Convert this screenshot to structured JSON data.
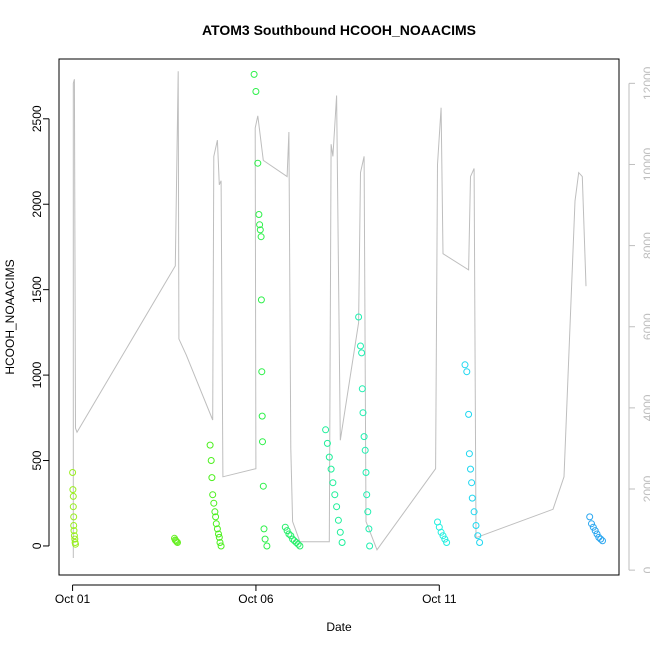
{
  "chart_data": {
    "type": "scatter",
    "title": "ATOM3 Southbound HCOOH_NOAACIMS",
    "xlabel": "Date",
    "ylabel": "HCOOH_NOAACIMS",
    "x_ticks": [
      {
        "day": 1,
        "label": "Oct 01"
      },
      {
        "day": 6,
        "label": "Oct 06"
      },
      {
        "day": 11,
        "label": "Oct 11"
      }
    ],
    "xlim_days": [
      0.63,
      15.9
    ],
    "ylim": [
      -170,
      2850
    ],
    "y_ticks": [
      0,
      500,
      1000,
      1500,
      2000,
      2500
    ],
    "y2lim": [
      -120,
      12600
    ],
    "y2_ticks": [
      0,
      2000,
      4000,
      6000,
      8000,
      10000,
      12000
    ],
    "y2_color": "#bebebe",
    "grid": false,
    "legend": "none",
    "altitude_trace": {
      "color": "#bebebe",
      "description_units": "secondary axis",
      "points": [
        [
          1.02,
          300
        ],
        [
          1.02,
          12000
        ],
        [
          1.05,
          12100
        ],
        [
          1.08,
          3500
        ],
        [
          1.12,
          3400
        ],
        [
          3.8,
          7500
        ],
        [
          3.88,
          12300
        ],
        [
          3.9,
          5700
        ],
        [
          4.1,
          5300
        ],
        [
          4.82,
          3700
        ],
        [
          4.85,
          10200
        ],
        [
          4.95,
          10600
        ],
        [
          5.0,
          9500
        ],
        [
          5.05,
          9600
        ],
        [
          5.1,
          2300
        ],
        [
          6.0,
          2500
        ],
        [
          5.98,
          10900
        ],
        [
          6.05,
          11200
        ],
        [
          6.2,
          10100
        ],
        [
          6.85,
          9700
        ],
        [
          6.9,
          10800
        ],
        [
          6.95,
          3000
        ],
        [
          7.0,
          1200
        ],
        [
          7.2,
          700
        ],
        [
          8.0,
          700
        ],
        [
          8.05,
          10500
        ],
        [
          8.1,
          10200
        ],
        [
          8.2,
          11700
        ],
        [
          8.3,
          3200
        ],
        [
          8.8,
          6100
        ],
        [
          8.85,
          9800
        ],
        [
          8.95,
          10200
        ],
        [
          9.0,
          1200
        ],
        [
          9.3,
          500
        ],
        [
          10.9,
          2500
        ],
        [
          10.95,
          10000
        ],
        [
          11.05,
          11400
        ],
        [
          11.1,
          7800
        ],
        [
          11.8,
          7400
        ],
        [
          11.85,
          9700
        ],
        [
          11.95,
          9900
        ],
        [
          12.0,
          800
        ],
        [
          14.1,
          1500
        ],
        [
          14.4,
          2300
        ],
        [
          14.7,
          9100
        ],
        [
          14.8,
          9800
        ],
        [
          14.9,
          9700
        ],
        [
          15.0,
          7000
        ]
      ]
    },
    "series": [
      {
        "color": "#9aef1f",
        "x": [
          1.0,
          1.01,
          1.02,
          1.02,
          1.03,
          1.03,
          1.04,
          1.05,
          1.06,
          1.07,
          1.08
        ],
        "y": [
          430,
          330,
          290,
          230,
          170,
          120,
          90,
          60,
          40,
          20,
          10
        ]
      },
      {
        "color": "#66ef22",
        "x": [
          3.78,
          3.8,
          3.82,
          3.84,
          3.86
        ],
        "y": [
          45,
          35,
          30,
          25,
          20
        ]
      },
      {
        "color": "#4cf01e",
        "x": [
          4.75,
          4.78,
          4.8,
          4.82,
          4.85,
          4.88,
          4.9,
          4.92,
          4.95,
          4.98,
          5.0,
          5.02,
          5.05
        ],
        "y": [
          590,
          500,
          400,
          300,
          250,
          200,
          170,
          130,
          100,
          70,
          50,
          20,
          0
        ]
      },
      {
        "color": "#2ef04a",
        "x": [
          5.95,
          6.0,
          6.05,
          6.08,
          6.1,
          6.12,
          6.14,
          6.15,
          6.16,
          6.17,
          6.18,
          6.2,
          6.22,
          6.25,
          6.3
        ],
        "y": [
          2760,
          2660,
          2240,
          1940,
          1880,
          1850,
          1810,
          1440,
          1020,
          760,
          610,
          350,
          100,
          40,
          0
        ]
      },
      {
        "color": "#28ef6c",
        "x": [
          6.8,
          6.85,
          6.9,
          6.95,
          7.0,
          7.05,
          7.1,
          7.15,
          7.2
        ],
        "y": [
          110,
          90,
          70,
          60,
          40,
          30,
          20,
          10,
          0
        ]
      },
      {
        "color": "#1eef9a",
        "x": [
          7.9,
          7.95,
          8.0,
          8.05,
          8.1,
          8.15,
          8.2,
          8.25,
          8.3,
          8.35
        ],
        "y": [
          680,
          600,
          520,
          450,
          370,
          300,
          230,
          150,
          80,
          20
        ]
      },
      {
        "color": "#1fefb0",
        "x": [
          8.8,
          8.85,
          8.88,
          8.9,
          8.92,
          8.95,
          8.98,
          9.0,
          9.02,
          9.05,
          9.08,
          9.1
        ],
        "y": [
          1340,
          1170,
          1130,
          920,
          780,
          640,
          560,
          430,
          300,
          200,
          100,
          0
        ]
      },
      {
        "color": "#22efe0",
        "x": [
          10.95,
          11.0,
          11.05,
          11.1,
          11.15,
          11.2
        ],
        "y": [
          140,
          110,
          80,
          60,
          40,
          20
        ]
      },
      {
        "color": "#1fd7f0",
        "x": [
          11.7,
          11.75,
          11.8,
          11.82,
          11.85,
          11.88,
          11.9,
          11.95,
          12.0,
          12.05,
          12.1
        ],
        "y": [
          1060,
          1020,
          770,
          540,
          450,
          370,
          280,
          200,
          120,
          60,
          20
        ]
      },
      {
        "color": "#2aa6f0",
        "x": [
          15.1,
          15.15,
          15.2,
          15.25,
          15.3,
          15.35,
          15.4,
          15.45
        ],
        "y": [
          170,
          130,
          110,
          90,
          70,
          50,
          40,
          30
        ]
      }
    ]
  }
}
